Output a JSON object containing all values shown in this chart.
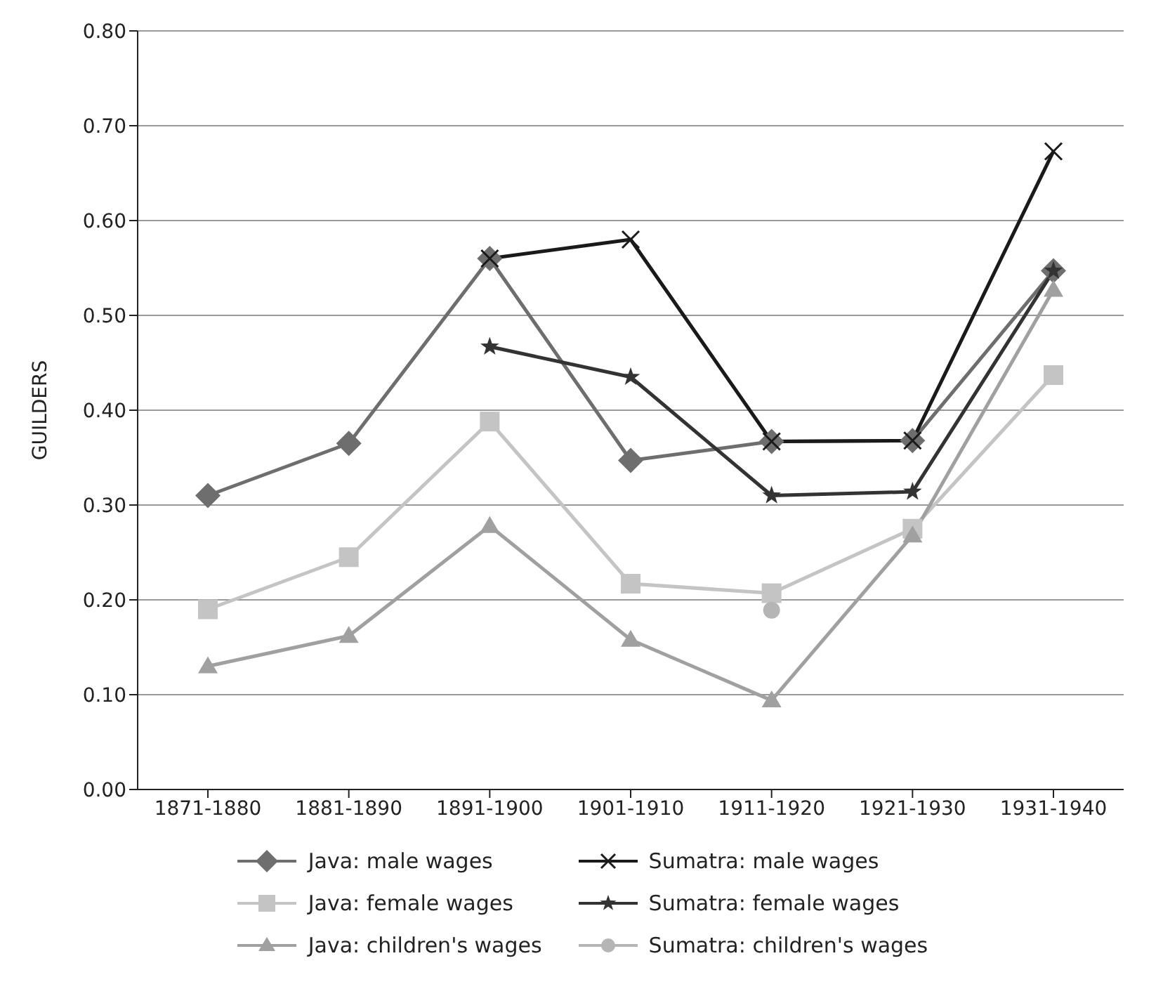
{
  "chart_data": {
    "type": "line",
    "ylabel": "GUILDERS",
    "categories": [
      "1871-1880",
      "1881-1890",
      "1891-1900",
      "1901-1910",
      "1911-1920",
      "1921-1930",
      "1931-1940"
    ],
    "series": [
      {
        "name": "Java: male wages",
        "color": "#6e6e6e",
        "marker": "diamond",
        "values": [
          0.31,
          0.365,
          0.56,
          0.347,
          0.367,
          0.368,
          0.547
        ]
      },
      {
        "name": "Java: female wages",
        "color": "#c4c4c4",
        "marker": "square",
        "values": [
          0.19,
          0.245,
          0.388,
          0.217,
          0.207,
          0.275,
          0.437
        ]
      },
      {
        "name": "Java: children's wages",
        "color": "#a0a0a0",
        "marker": "triangle",
        "values": [
          0.13,
          0.162,
          0.278,
          0.158,
          0.094,
          0.268,
          0.527
        ]
      },
      {
        "name": "Sumatra: male wages",
        "color": "#1a1a1a",
        "marker": "cross",
        "values": [
          null,
          null,
          0.56,
          0.58,
          0.367,
          0.368,
          0.673
        ]
      },
      {
        "name": "Sumatra: female wages",
        "color": "#333333",
        "marker": "star",
        "values": [
          null,
          null,
          0.467,
          0.435,
          0.31,
          0.314,
          0.547
        ]
      },
      {
        "name": "Sumatra: children's wages",
        "color": "#b5b5b5",
        "marker": "circle",
        "values": [
          null,
          null,
          null,
          null,
          0.189,
          null,
          null
        ]
      }
    ],
    "ylim": [
      0,
      0.8
    ],
    "yticks": [
      {
        "value": 0,
        "label": "0.00"
      },
      {
        "value": 0.1,
        "label": "0.10"
      },
      {
        "value": 0.2,
        "label": "0.20"
      },
      {
        "value": 0.3,
        "label": "0.30"
      },
      {
        "value": 0.4,
        "label": "0.40"
      },
      {
        "value": 0.5,
        "label": "0.50"
      },
      {
        "value": 0.6,
        "label": "0.60"
      },
      {
        "value": 0.7,
        "label": "0.70"
      },
      {
        "value": 0.8,
        "label": "0.80"
      }
    ],
    "grid": "y",
    "legend": "bottom"
  }
}
